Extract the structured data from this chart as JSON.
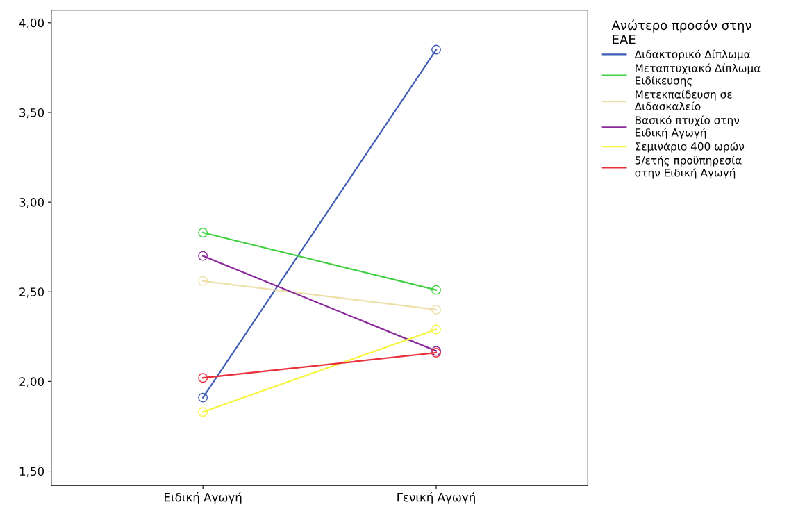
{
  "chart_data": {
    "type": "line",
    "legend_title": "Ανώτερο προσόν στην\nΕΑΕ",
    "categories": [
      "Ειδική Αγωγή",
      "Γενική Αγωγή"
    ],
    "series": [
      {
        "name": "Διδακτορικό Δίπλωμα",
        "color": "#3e5bb5",
        "values": [
          1.91,
          3.85
        ]
      },
      {
        "name": "Μεταπτυχιακό Δίπλωμα\nΕιδίκευσης",
        "color": "#3fcf3f",
        "values": [
          2.83,
          2.51
        ]
      },
      {
        "name": "Μετεκπαίδευση σε\nΔιδασκαλείο",
        "color": "#eedfa8",
        "values": [
          2.56,
          2.4
        ]
      },
      {
        "name": "Βασικό πτυχίο στην\nΕιδική Αγωγή",
        "color": "#8a2a9b",
        "values": [
          2.7,
          2.17
        ]
      },
      {
        "name": "Σεμινάριο 400 ωρών",
        "color": "#f5f542",
        "values": [
          1.83,
          2.29
        ]
      },
      {
        "name": "5/ετής προϋπηρεσία\nστην Ειδική Αγωγή",
        "color": "#e8303a",
        "values": [
          2.02,
          2.16
        ]
      }
    ],
    "ylim": [
      1.42,
      4.07
    ],
    "yticks": [
      {
        "value": 1.5,
        "label": "1,50"
      },
      {
        "value": 2.0,
        "label": "2,00"
      },
      {
        "value": 2.5,
        "label": "2,50"
      },
      {
        "value": 3.0,
        "label": "3,00"
      },
      {
        "value": 3.5,
        "label": "3,50"
      },
      {
        "value": 4.0,
        "label": "4,00"
      }
    ],
    "grid": false,
    "legend": "right",
    "marker": "circle",
    "line_style": "solid"
  }
}
